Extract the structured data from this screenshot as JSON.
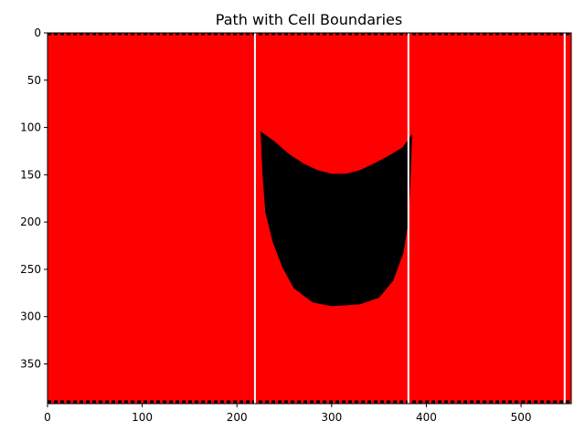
{
  "chart_data": {
    "type": "heatmap",
    "title": "Path with Cell Boundaries",
    "xlabel": "",
    "ylabel": "",
    "xlim": [
      0,
      553
    ],
    "ylim": [
      392,
      0
    ],
    "x_ticks": [
      0,
      100,
      200,
      300,
      400,
      500
    ],
    "y_ticks": [
      0,
      50,
      100,
      150,
      200,
      250,
      300,
      350
    ],
    "background_color": "#ff0000",
    "shape_color": "#000000",
    "boundary_color": "#ffffff",
    "cell_boundaries_x": [
      219,
      381,
      546
    ],
    "path_shape": {
      "name": "path-region",
      "points": [
        [
          225,
          104
        ],
        [
          240,
          115
        ],
        [
          255,
          128
        ],
        [
          270,
          138
        ],
        [
          285,
          145
        ],
        [
          300,
          149
        ],
        [
          315,
          149
        ],
        [
          330,
          145
        ],
        [
          345,
          138
        ],
        [
          360,
          130
        ],
        [
          375,
          121
        ],
        [
          385,
          107
        ],
        [
          383,
          160
        ],
        [
          381,
          200
        ],
        [
          376,
          232
        ],
        [
          365,
          262
        ],
        [
          350,
          280
        ],
        [
          330,
          287
        ],
        [
          300,
          289
        ],
        [
          280,
          285
        ],
        [
          260,
          270
        ],
        [
          248,
          248
        ],
        [
          238,
          222
        ],
        [
          230,
          190
        ],
        [
          227,
          150
        ]
      ]
    },
    "top_dashed_border_y": 0,
    "bottom_dashed_border_y": 390
  }
}
